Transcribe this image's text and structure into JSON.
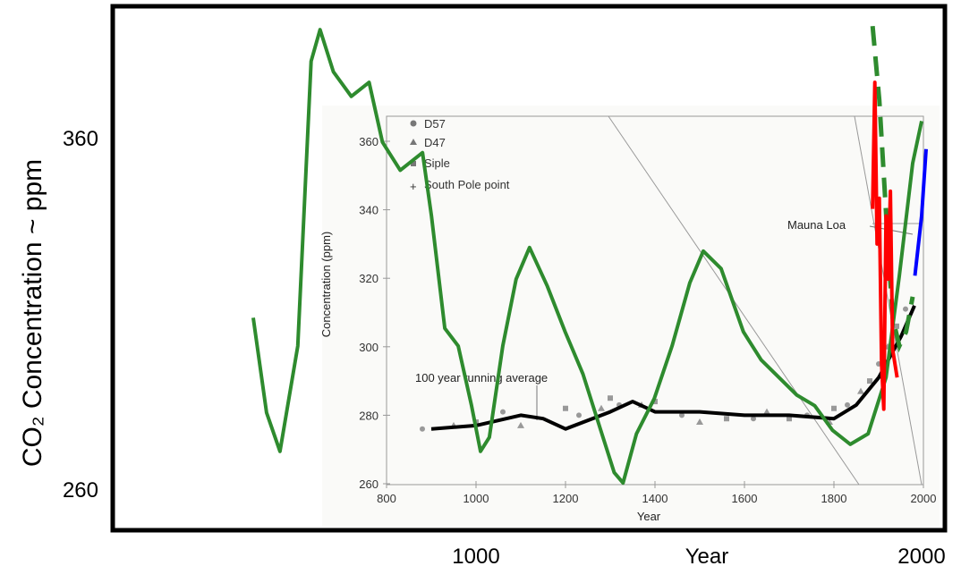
{
  "chart_data": [
    {
      "type": "line",
      "title": "",
      "ylabel": "CO₂ Concentration ~ ppm",
      "xlabel": "Year",
      "x_ticks": [
        "1000",
        "2000"
      ],
      "y_ticks": [
        "260",
        "360"
      ],
      "series": [
        {
          "color": "#2e8b2e",
          "style": "solid",
          "points": [
            [
              500,
              309
            ],
            [
              530,
              282
            ],
            [
              560,
              271
            ],
            [
              600,
              301
            ],
            [
              630,
              382
            ],
            [
              650,
              391
            ],
            [
              680,
              379
            ],
            [
              720,
              372
            ],
            [
              760,
              376
            ],
            [
              790,
              359
            ],
            [
              830,
              351
            ],
            [
              880,
              356
            ],
            [
              900,
              338
            ],
            [
              930,
              306
            ],
            [
              960,
              301
            ],
            [
              990,
              284
            ],
            [
              1010,
              271
            ],
            [
              1030,
              275
            ],
            [
              1060,
              301
            ],
            [
              1090,
              320
            ],
            [
              1120,
              329
            ],
            [
              1160,
              318
            ],
            [
              1200,
              305
            ],
            [
              1240,
              293
            ],
            [
              1280,
              277
            ],
            [
              1310,
              265
            ],
            [
              1330,
              262
            ],
            [
              1360,
              276
            ],
            [
              1400,
              286
            ],
            [
              1440,
              301
            ],
            [
              1480,
              319
            ],
            [
              1510,
              328
            ],
            [
              1550,
              323
            ],
            [
              1600,
              305
            ],
            [
              1640,
              297
            ],
            [
              1680,
              292
            ],
            [
              1720,
              287
            ],
            [
              1760,
              284
            ],
            [
              1800,
              277
            ],
            [
              1840,
              273
            ],
            [
              1880,
              276
            ],
            [
              1920,
              292
            ],
            [
              1950,
              321
            ],
            [
              1980,
              353
            ],
            [
              2000,
              365
            ]
          ]
        },
        {
          "color": "#2e8b2e",
          "style": "dashed",
          "points": [
            [
              1890,
              392
            ],
            [
              1905,
              371
            ],
            [
              1920,
              339
            ],
            [
              1935,
              309
            ],
            [
              1950,
              301
            ],
            [
              1965,
              305
            ],
            [
              1980,
              315
            ]
          ]
        },
        {
          "color": "#ff0000",
          "style": "solid",
          "points": [
            [
              1890,
              340
            ],
            [
              1895,
              376
            ],
            [
              1900,
              330
            ],
            [
              1905,
              343
            ],
            [
              1910,
              296
            ],
            [
              1915,
              283
            ],
            [
              1920,
              338
            ],
            [
              1925,
              320
            ],
            [
              1930,
              345
            ],
            [
              1935,
              300
            ],
            [
              1945,
              292
            ]
          ]
        },
        {
          "color": "#0000ff",
          "style": "solid",
          "points": [
            [
              1985,
              321
            ],
            [
              2000,
              338
            ],
            [
              2010,
              357
            ]
          ]
        }
      ]
    },
    {
      "type": "scatter",
      "title": "",
      "xlabel": "Year",
      "ylabel": "Concentration (ppm)",
      "xlim": [
        800,
        2000
      ],
      "ylim": [
        260,
        360
      ],
      "x_ticks": [
        "800",
        "1000",
        "1200",
        "1400",
        "1600",
        "1800",
        "2000"
      ],
      "y_ticks": [
        "260",
        "280",
        "300",
        "320",
        "340",
        "360"
      ],
      "legend": [
        "D57",
        "D47",
        "Siple",
        "South Pole point"
      ],
      "annotations": [
        "100 year running average",
        "Mauna Loa"
      ],
      "series": [
        {
          "name": "100 year running average",
          "color": "#000000",
          "points": [
            [
              900,
              276
            ],
            [
              1000,
              277
            ],
            [
              1100,
              280
            ],
            [
              1150,
              279
            ],
            [
              1200,
              276
            ],
            [
              1300,
              281
            ],
            [
              1350,
              284
            ],
            [
              1400,
              281
            ],
            [
              1500,
              281
            ],
            [
              1600,
              280
            ],
            [
              1700,
              280
            ],
            [
              1800,
              279
            ],
            [
              1850,
              283
            ],
            [
              1900,
              291
            ],
            [
              1950,
              303
            ],
            [
              1980,
              312
            ]
          ]
        },
        {
          "name": "D57 / D47 / Siple / South Pole point",
          "color": "#888888",
          "points": [
            [
              880,
              276
            ],
            [
              950,
              277
            ],
            [
              1000,
              278
            ],
            [
              1060,
              281
            ],
            [
              1100,
              277
            ],
            [
              1200,
              282
            ],
            [
              1230,
              280
            ],
            [
              1280,
              282
            ],
            [
              1300,
              285
            ],
            [
              1320,
              283
            ],
            [
              1370,
              283
            ],
            [
              1400,
              284
            ],
            [
              1460,
              280
            ],
            [
              1500,
              278
            ],
            [
              1560,
              279
            ],
            [
              1620,
              279
            ],
            [
              1650,
              281
            ],
            [
              1700,
              279
            ],
            [
              1740,
              280
            ],
            [
              1790,
              278
            ],
            [
              1800,
              282
            ],
            [
              1830,
              283
            ],
            [
              1860,
              287
            ],
            [
              1880,
              290
            ],
            [
              1900,
              295
            ],
            [
              1920,
              300
            ],
            [
              1940,
              306
            ],
            [
              1960,
              311
            ]
          ]
        }
      ]
    }
  ]
}
